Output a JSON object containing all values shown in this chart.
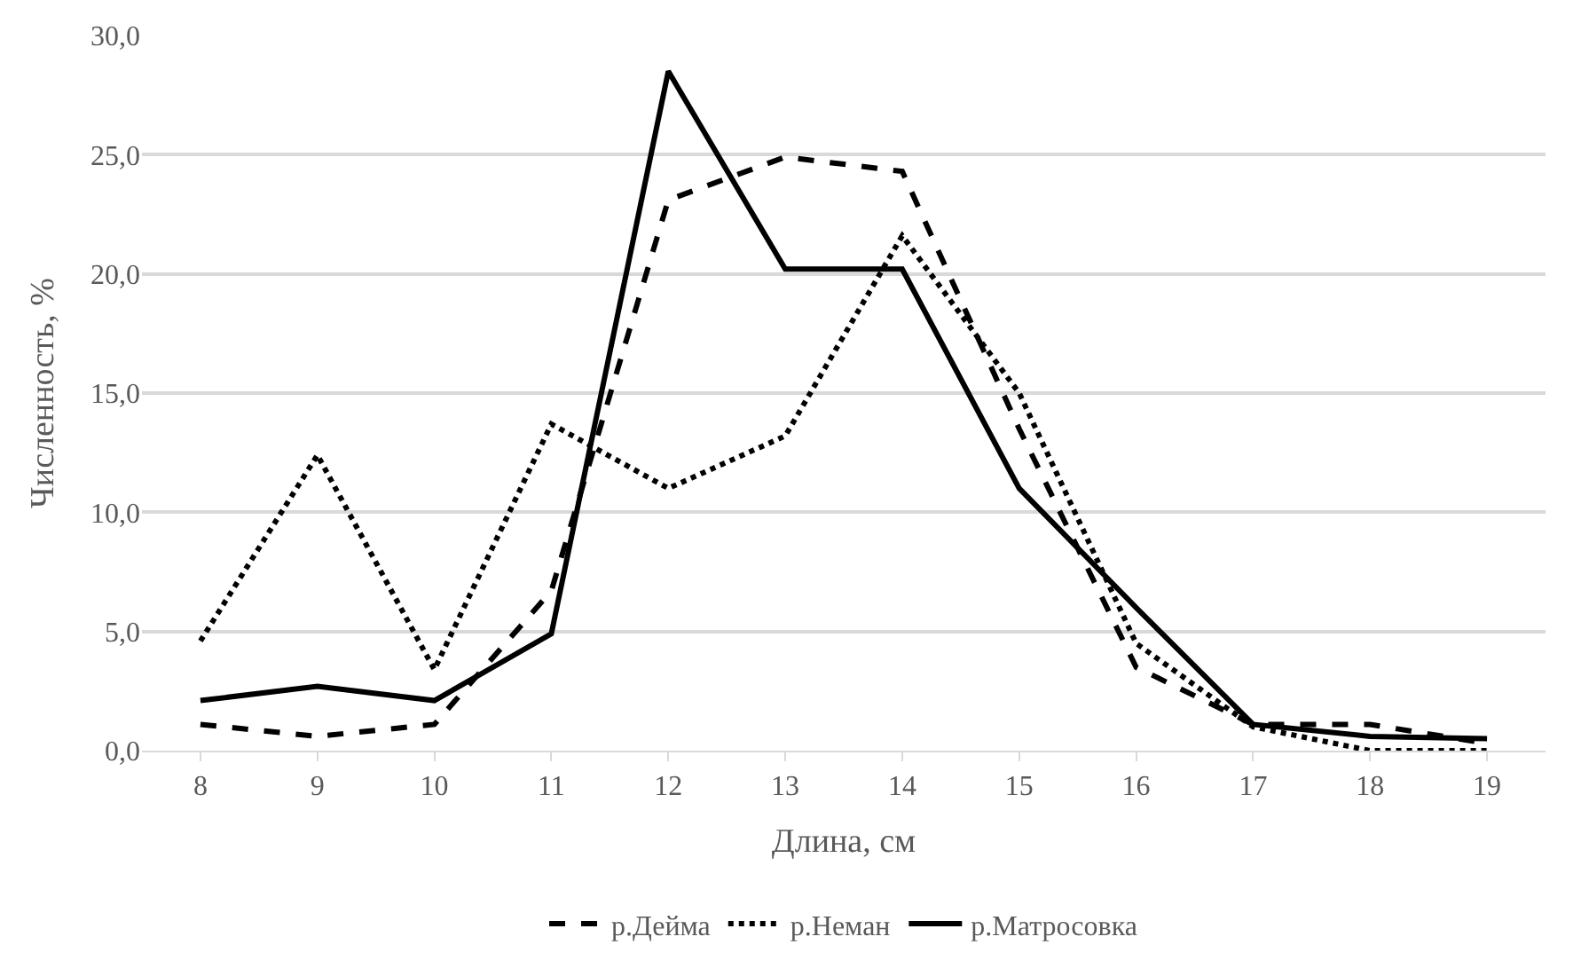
{
  "chart_data": {
    "type": "line",
    "xlabel": "Длина, см",
    "ylabel": "Численность, %",
    "categories": [
      "8",
      "9",
      "10",
      "11",
      "12",
      "13",
      "14",
      "15",
      "16",
      "17",
      "18",
      "19"
    ],
    "series": [
      {
        "name": "р.Дейма",
        "color": "#000000",
        "line_style": "dashed",
        "values": [
          1.1,
          0.6,
          1.1,
          6.7,
          23.1,
          24.9,
          24.3,
          13.5,
          3.5,
          1.1,
          1.1,
          0.3
        ]
      },
      {
        "name": "р.Неман",
        "color": "#000000",
        "line_style": "dotted",
        "values": [
          4.6,
          12.4,
          3.4,
          13.7,
          11.0,
          13.2,
          21.6,
          15.0,
          4.5,
          1.0,
          0.0,
          0.0
        ]
      },
      {
        "name": "р.Матросовка",
        "color": "#000000",
        "line_style": "solid",
        "values": [
          2.1,
          2.7,
          2.1,
          4.9,
          28.5,
          20.2,
          20.2,
          11.0,
          6.0,
          1.1,
          0.6,
          0.5
        ]
      }
    ],
    "ylim": [
      0,
      30
    ],
    "yticks": [
      {
        "value": 0,
        "label": "0,0"
      },
      {
        "value": 5,
        "label": "5,0"
      },
      {
        "value": 10,
        "label": "10,0"
      },
      {
        "value": 15,
        "label": "15,0"
      },
      {
        "value": 20,
        "label": "20,0"
      },
      {
        "value": 25,
        "label": "25,0"
      },
      {
        "value": 30,
        "label": "30,0"
      }
    ],
    "grid": "y",
    "legend": "bottom",
    "marker": "none"
  }
}
